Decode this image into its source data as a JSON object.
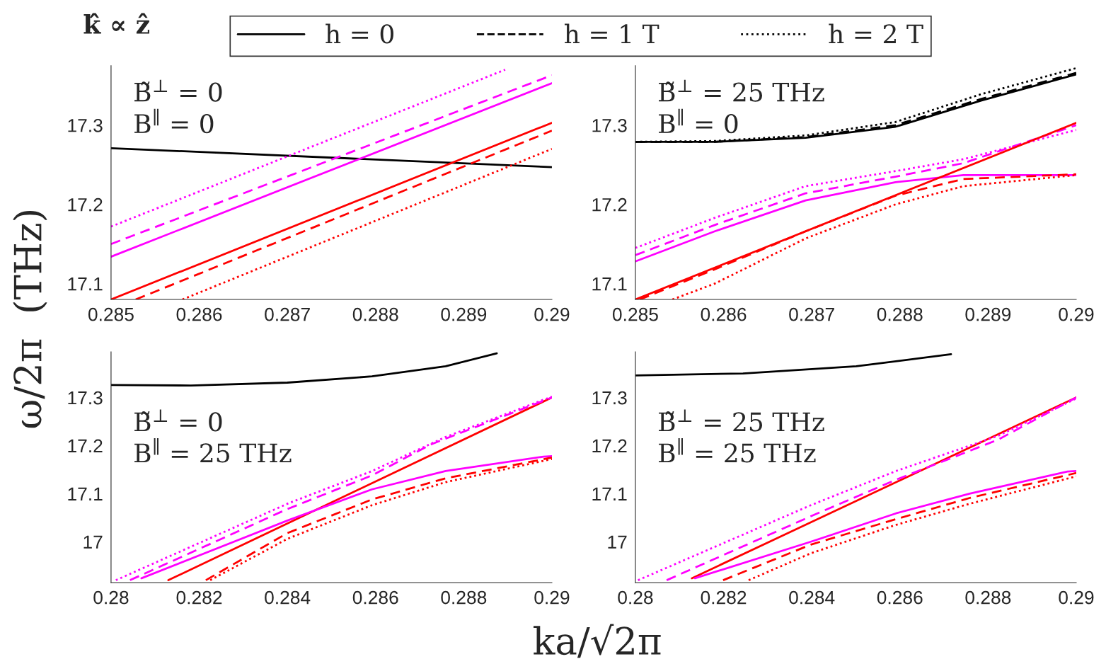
{
  "chart_data": [
    {
      "type": "line",
      "title": "k̂ ∝ ẑ",
      "ylabel": "ω/2π  (THz)",
      "annotations": [
        "B̃$^{⊥}$ = 0",
        "B$^{∥}$ = 0"
      ],
      "xlim": [
        0.285,
        0.29
      ],
      "xticks": [
        0.285,
        0.286,
        0.287,
        0.288,
        0.289,
        0.29
      ],
      "ylim": [
        17.08,
        17.375
      ],
      "yticks": [
        17.1,
        17.2,
        17.3
      ],
      "legend": false,
      "grid": false,
      "series": [
        {
          "color": "#000000",
          "line_style": "solid",
          "x": [
            0.285,
            0.29
          ],
          "values": [
            17.271,
            17.247
          ]
        },
        {
          "color": "#ff00ff",
          "line_style": "solid",
          "x": [
            0.285,
            0.29
          ],
          "values": [
            17.134,
            17.353
          ]
        },
        {
          "color": "#ff00ff",
          "line_style": "dashed",
          "x": [
            0.285,
            0.29
          ],
          "values": [
            17.15,
            17.363
          ]
        },
        {
          "color": "#ff00ff",
          "line_style": "dotted",
          "x": [
            0.285,
            0.28947
          ],
          "values": [
            17.172,
            17.37
          ]
        },
        {
          "color": "#ff0000",
          "line_style": "solid",
          "x": [
            0.285,
            0.29
          ],
          "values": [
            17.08,
            17.303
          ]
        },
        {
          "color": "#ff0000",
          "line_style": "dashed",
          "x": [
            0.28528,
            0.29
          ],
          "values": [
            17.08,
            17.293
          ]
        },
        {
          "color": "#ff0000",
          "line_style": "dotted",
          "x": [
            0.28581,
            0.29
          ],
          "values": [
            17.08,
            17.27
          ]
        }
      ]
    },
    {
      "type": "line",
      "annotations": [
        "B̃$^{⊥}$ = 25 THz",
        "B$^{∥}$ = 0"
      ],
      "xlim": [
        0.285,
        0.29
      ],
      "xticks": [
        0.285,
        0.286,
        0.287,
        0.288,
        0.289,
        0.29
      ],
      "ylim": [
        17.08,
        17.375
      ],
      "yticks": [
        17.1,
        17.2,
        17.3
      ],
      "legend": "top",
      "grid": false,
      "series": [
        {
          "name": "h = 0",
          "color": "#000000",
          "line_style": "solid",
          "x": [
            0.285,
            0.2859,
            0.28693,
            0.28795,
            0.28892,
            0.29
          ],
          "values": [
            17.279,
            17.279,
            17.284,
            17.298,
            17.331,
            17.364
          ]
        },
        {
          "name": "h = 1 T",
          "color": "#000000",
          "line_style": "dashed",
          "x": [
            0.285,
            0.2859,
            0.28693,
            0.28795,
            0.28892,
            0.29
          ],
          "values": [
            17.279,
            17.279,
            17.285,
            17.3,
            17.333,
            17.366
          ]
        },
        {
          "name": "h = 2 T",
          "color": "#000000",
          "line_style": "dotted",
          "x": [
            0.285,
            0.2859,
            0.28693,
            0.28795,
            0.28892,
            0.29
          ],
          "values": [
            17.279,
            17.28,
            17.287,
            17.304,
            17.339,
            17.372
          ]
        },
        {
          "color": "#ff00ff",
          "line_style": "solid",
          "x": [
            0.285,
            0.2859,
            0.28693,
            0.28795,
            0.28872,
            0.29
          ],
          "values": [
            17.128,
            17.166,
            17.205,
            17.228,
            17.237,
            17.237
          ]
        },
        {
          "color": "#ff00ff",
          "line_style": "dashed",
          "x": [
            0.285,
            0.2859,
            0.28693,
            0.28795,
            0.28872,
            0.29
          ],
          "values": [
            17.136,
            17.174,
            17.214,
            17.235,
            17.252,
            17.3
          ]
        },
        {
          "color": "#ff00ff",
          "line_style": "dotted",
          "x": [
            0.285,
            0.2859,
            0.28693,
            0.28795,
            0.28872,
            0.29
          ],
          "values": [
            17.145,
            17.183,
            17.223,
            17.242,
            17.257,
            17.294
          ]
        },
        {
          "color": "#ff0000",
          "line_style": "solid",
          "x": [
            0.285,
            0.29
          ],
          "values": [
            17.08,
            17.303
          ]
        },
        {
          "color": "#ff0000",
          "line_style": "dashed",
          "x": [
            0.28505,
            0.2859,
            0.28693,
            0.28795,
            0.28872,
            0.29
          ],
          "values": [
            17.08,
            17.118,
            17.166,
            17.211,
            17.232,
            17.238
          ]
        },
        {
          "color": "#ff0000",
          "line_style": "dotted",
          "x": [
            0.28542,
            0.2859,
            0.28693,
            0.28795,
            0.28872,
            0.29
          ],
          "values": [
            17.08,
            17.1,
            17.157,
            17.2,
            17.223,
            17.237
          ]
        }
      ]
    },
    {
      "type": "line",
      "xlabel": "ka/√2π",
      "annotations": [
        "B̃$^{⊥}$ = 0",
        "B$^{∥}$ = 25 THz"
      ],
      "xlim": [
        0.28,
        0.29
      ],
      "xticks": [
        0.28,
        0.282,
        0.284,
        0.286,
        0.288,
        0.29
      ],
      "ylim": [
        16.915,
        17.395
      ],
      "yticks": [
        17,
        17.1,
        17.2,
        17.3
      ],
      "legend": false,
      "grid": false,
      "series": [
        {
          "color": "#000000",
          "line_style": "solid",
          "x": [
            0.28,
            0.28181,
            0.284,
            0.28592,
            0.28759,
            0.28875
          ],
          "values": [
            17.326,
            17.325,
            17.331,
            17.344,
            17.365,
            17.392
          ]
        },
        {
          "color": "#ff0000",
          "line_style": "solid",
          "x": [
            0.2813,
            0.29
          ],
          "values": [
            16.92,
            17.3
          ]
        },
        {
          "color": "#ff00ff",
          "line_style": "solid",
          "x": [
            0.28069,
            0.284,
            0.28592,
            0.28759,
            0.28981,
            0.29
          ],
          "values": [
            16.924,
            17.044,
            17.109,
            17.147,
            17.177,
            17.178
          ]
        },
        {
          "color": "#ff00ff",
          "line_style": "dashed",
          "x": [
            0.28043,
            0.284,
            0.28592,
            0.28727,
            0.29
          ],
          "values": [
            16.92,
            17.068,
            17.138,
            17.203,
            17.3
          ]
        },
        {
          "color": "#ff00ff",
          "line_style": "dotted",
          "x": [
            0.28011,
            0.284,
            0.28592,
            0.28759,
            0.29
          ],
          "values": [
            16.92,
            17.079,
            17.147,
            17.218,
            17.302
          ]
        },
        {
          "color": "#ff0000",
          "line_style": "dashed",
          "x": [
            0.28215,
            0.284,
            0.28592,
            0.28759,
            0.29
          ],
          "values": [
            16.92,
            17.018,
            17.088,
            17.132,
            17.175
          ]
        },
        {
          "color": "#ff0000",
          "line_style": "dotted",
          "x": [
            0.28225,
            0.284,
            0.28592,
            0.28759,
            0.29
          ],
          "values": [
            16.92,
            17.006,
            17.076,
            17.124,
            17.172
          ]
        }
      ]
    },
    {
      "type": "line",
      "annotations": [
        "B̃$^{⊥}$ = 25 THz",
        "B$^{∥}$ = 25 THz"
      ],
      "xlim": [
        0.28,
        0.29
      ],
      "xticks": [
        0.28,
        0.282,
        0.284,
        0.286,
        0.288,
        0.29
      ],
      "ylim": [
        16.915,
        17.395
      ],
      "yticks": [
        17,
        17.1,
        17.2,
        17.3
      ],
      "legend": false,
      "grid": false,
      "series": [
        {
          "color": "#000000",
          "line_style": "solid",
          "x": [
            0.28,
            0.28244,
            0.28501,
            0.28716
          ],
          "values": [
            17.346,
            17.35,
            17.365,
            17.39
          ]
        },
        {
          "color": "#ff0000",
          "line_style": "solid",
          "x": [
            0.28128,
            0.29
          ],
          "values": [
            16.924,
            17.3
          ]
        },
        {
          "color": "#ff00ff",
          "line_style": "solid",
          "x": [
            0.28135,
            0.28398,
            0.28591,
            0.28758,
            0.2898,
            0.29
          ],
          "values": [
            16.924,
            17.0,
            17.059,
            17.1,
            17.146,
            17.147
          ]
        },
        {
          "color": "#ff00ff",
          "line_style": "dashed",
          "x": [
            0.28071,
            0.28398,
            0.28591,
            0.28822,
            0.29
          ],
          "values": [
            16.92,
            17.053,
            17.129,
            17.212,
            17.3
          ]
        },
        {
          "color": "#ff00ff",
          "line_style": "dotted",
          "x": [
            0.28006,
            0.28398,
            0.28591,
            0.28822,
            0.29
          ],
          "values": [
            16.92,
            17.076,
            17.147,
            17.22,
            17.298
          ]
        },
        {
          "color": "#ff0000",
          "line_style": "dashed",
          "x": [
            0.28199,
            0.28398,
            0.28591,
            0.28758,
            0.29
          ],
          "values": [
            16.92,
            16.994,
            17.047,
            17.091,
            17.143
          ]
        },
        {
          "color": "#ff0000",
          "line_style": "dotted",
          "x": [
            0.28257,
            0.28398,
            0.28591,
            0.28758,
            0.29
          ],
          "values": [
            16.92,
            16.976,
            17.035,
            17.079,
            17.136
          ]
        }
      ]
    }
  ]
}
